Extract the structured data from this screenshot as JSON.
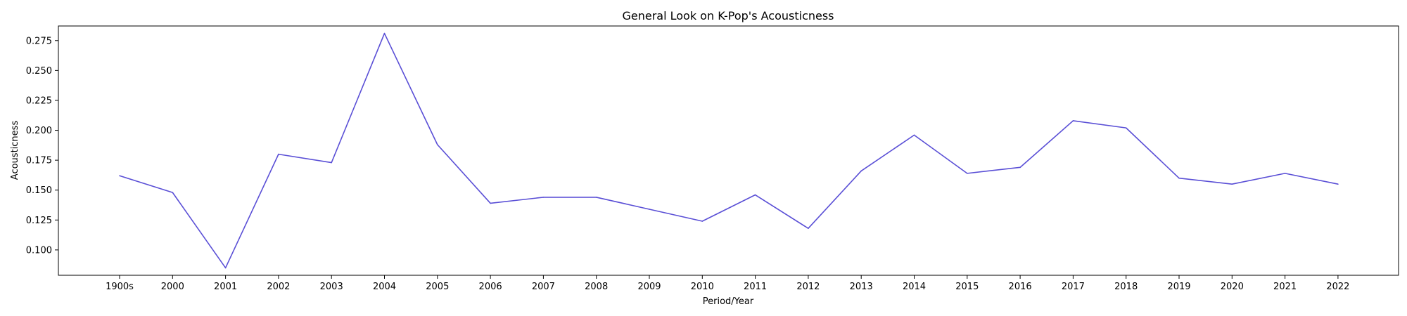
{
  "chart_data": {
    "type": "line",
    "title": "General Look on K-Pop's Acousticness",
    "xlabel": "Period/Year",
    "ylabel": "Acousticness",
    "categories": [
      "1900s",
      "2000",
      "2001",
      "2002",
      "2003",
      "2004",
      "2005",
      "2006",
      "2007",
      "2008",
      "2009",
      "2010",
      "2011",
      "2012",
      "2013",
      "2014",
      "2015",
      "2016",
      "2017",
      "2018",
      "2019",
      "2020",
      "2021",
      "2022"
    ],
    "series": [
      {
        "values": [
          0.162,
          0.148,
          0.085,
          0.18,
          0.173,
          0.281,
          0.188,
          0.139,
          0.144,
          0.144,
          0.134,
          0.124,
          0.146,
          0.118,
          0.166,
          0.196,
          0.164,
          0.169,
          0.208,
          0.202,
          0.16,
          0.155,
          0.164,
          0.155
        ],
        "color": "#5a4fd6"
      }
    ],
    "yticks": [
      "0.100",
      "0.125",
      "0.150",
      "0.175",
      "0.200",
      "0.225",
      "0.250",
      "0.275"
    ],
    "ylim": [
      0.0788,
      0.2872
    ],
    "grid": false,
    "legend": "none"
  }
}
